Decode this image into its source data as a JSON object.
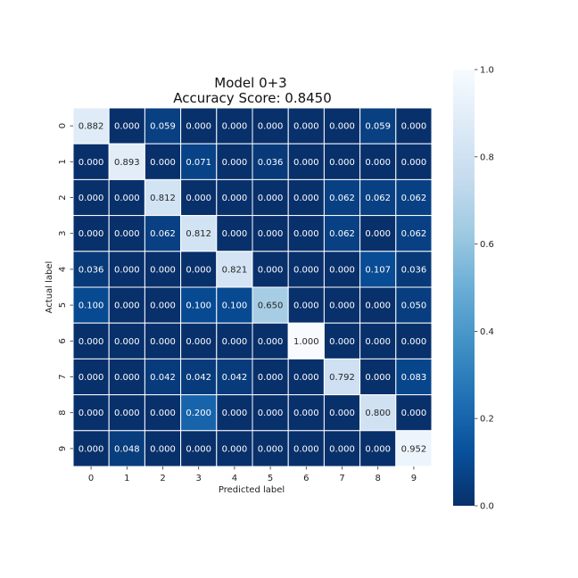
{
  "chart_data": {
    "type": "heatmap",
    "title": "Model 0+3",
    "subtitle": "Accuracy Score: 0.8450",
    "xlabel": "Predicted label",
    "ylabel": "Actual label",
    "x_categories": [
      "0",
      "1",
      "2",
      "3",
      "4",
      "5",
      "6",
      "7",
      "8",
      "9"
    ],
    "y_categories": [
      "0",
      "1",
      "2",
      "3",
      "4",
      "5",
      "6",
      "7",
      "8",
      "9"
    ],
    "values": [
      [
        0.882,
        0.0,
        0.059,
        0.0,
        0.0,
        0.0,
        0.0,
        0.0,
        0.059,
        0.0
      ],
      [
        0.0,
        0.893,
        0.0,
        0.071,
        0.0,
        0.036,
        0.0,
        0.0,
        0.0,
        0.0
      ],
      [
        0.0,
        0.0,
        0.812,
        0.0,
        0.0,
        0.0,
        0.0,
        0.062,
        0.062,
        0.062
      ],
      [
        0.0,
        0.0,
        0.062,
        0.812,
        0.0,
        0.0,
        0.0,
        0.062,
        0.0,
        0.062
      ],
      [
        0.036,
        0.0,
        0.0,
        0.0,
        0.821,
        0.0,
        0.0,
        0.0,
        0.107,
        0.036
      ],
      [
        0.1,
        0.0,
        0.0,
        0.1,
        0.1,
        0.65,
        0.0,
        0.0,
        0.0,
        0.05
      ],
      [
        0.0,
        0.0,
        0.0,
        0.0,
        0.0,
        0.0,
        1.0,
        0.0,
        0.0,
        0.0
      ],
      [
        0.0,
        0.0,
        0.042,
        0.042,
        0.042,
        0.0,
        0.0,
        0.792,
        0.0,
        0.083
      ],
      [
        0.0,
        0.0,
        0.0,
        0.2,
        0.0,
        0.0,
        0.0,
        0.0,
        0.8,
        0.0
      ],
      [
        0.0,
        0.048,
        0.0,
        0.0,
        0.0,
        0.0,
        0.0,
        0.0,
        0.0,
        0.952
      ]
    ],
    "value_format": "0.000",
    "colormap": "Blues_r",
    "vmin": 0.0,
    "vmax": 1.0,
    "colorbar_ticks": [
      "0.0",
      "0.2",
      "0.4",
      "0.6",
      "0.8",
      "1.0"
    ],
    "colorbar_tick_values": [
      0.0,
      0.2,
      0.4,
      0.6,
      0.8,
      1.0
    ],
    "cell_separator_color": "#ffffff",
    "low_color": "#08306b",
    "high_color": "#f7fbff"
  }
}
